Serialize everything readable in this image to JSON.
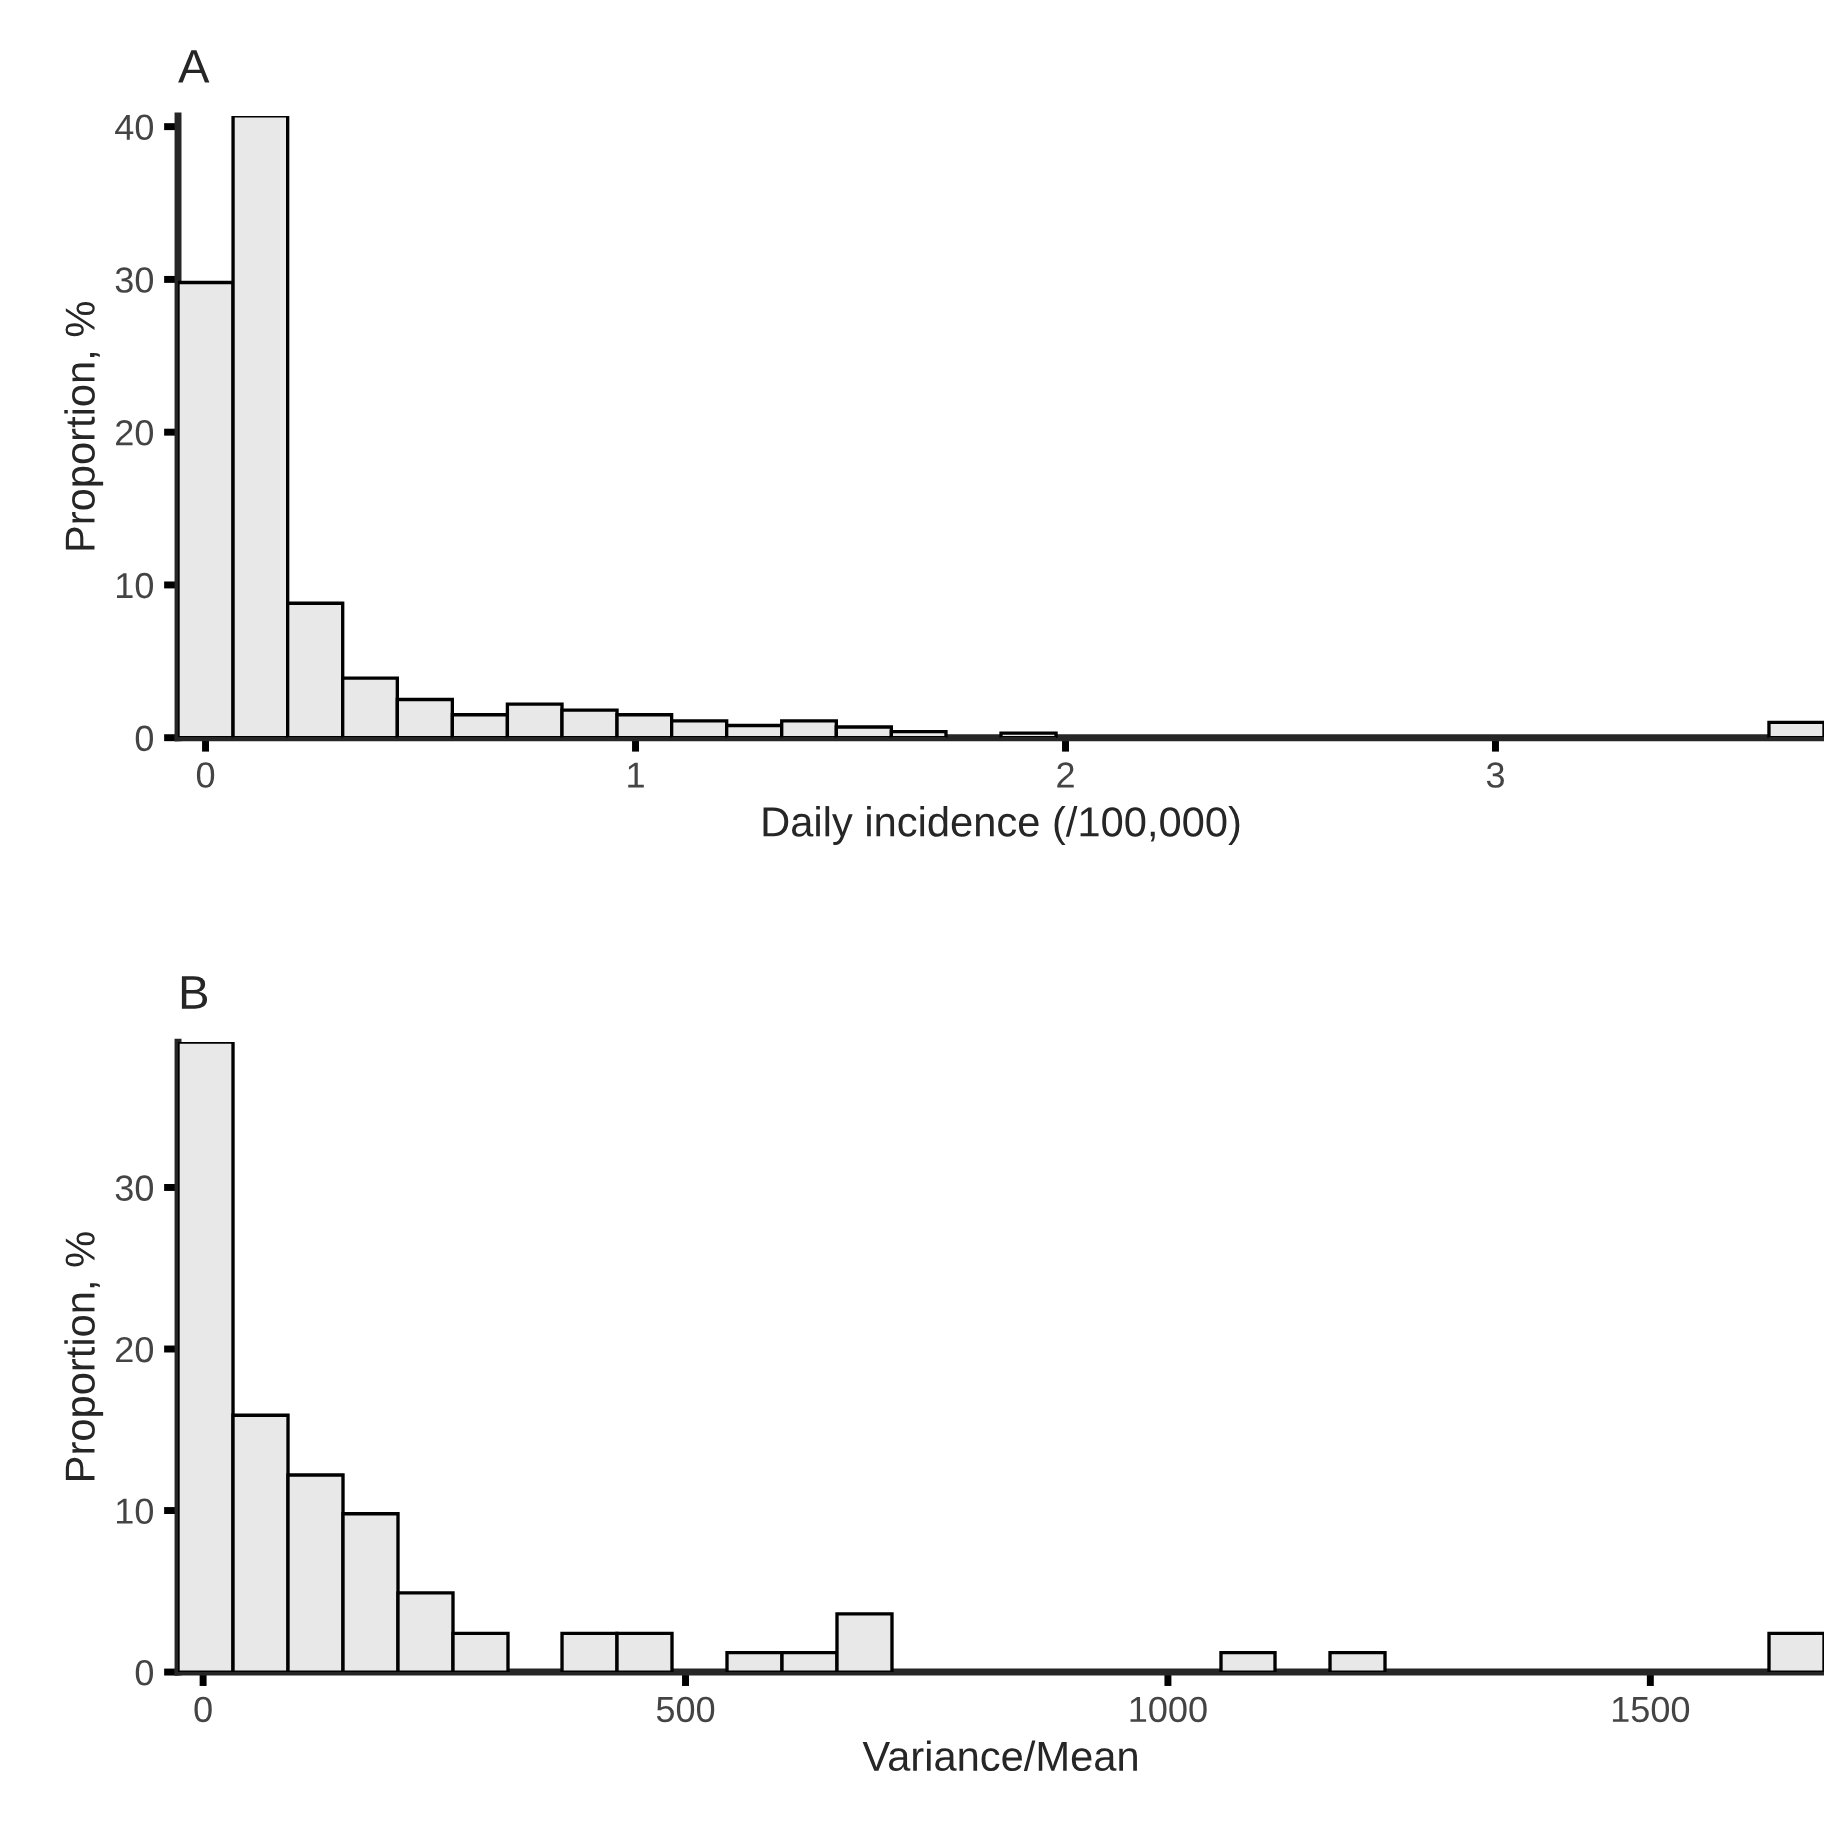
{
  "chart_data": [
    {
      "type": "histogram",
      "title": "A",
      "xlabel": "Daily incidence (/100,000)",
      "ylabel": "Proportion, %",
      "color": "#e8e8e8",
      "bins": [
        -0.064,
        0.064,
        0.191,
        0.319,
        0.446,
        0.574,
        0.702,
        0.829,
        0.957,
        1.084,
        1.212,
        1.34,
        1.467,
        1.595,
        1.722,
        1.85,
        1.978,
        2.105,
        2.233,
        2.36,
        2.488,
        2.616,
        2.743,
        2.871,
        2.998,
        3.126,
        3.254,
        3.381,
        3.509,
        3.636,
        3.764
      ],
      "values": [
        29.8,
        40.7,
        8.8,
        3.9,
        2.5,
        1.5,
        2.2,
        1.8,
        1.5,
        1.1,
        0.8,
        1.1,
        0.7,
        0.4,
        0,
        0.3,
        0,
        0,
        0,
        0,
        0,
        0,
        0,
        0,
        0,
        0,
        0,
        0,
        0,
        1.0
      ],
      "xlim": [
        -0.064,
        3.764
      ],
      "xticks": [
        0,
        1,
        2,
        3
      ],
      "ylim": [
        0,
        40.7
      ],
      "yticks": [
        0,
        10,
        20,
        30,
        40
      ],
      "grid": false
    },
    {
      "type": "histogram",
      "title": "B",
      "xlabel": "Variance/Mean",
      "ylabel": "Proportion, %",
      "color": "#e8e8e8",
      "bins": [
        -26,
        31,
        88,
        145,
        202,
        259,
        316,
        372,
        429,
        486,
        543,
        600,
        657,
        714,
        770,
        827,
        884,
        941,
        998,
        1055,
        1111,
        1168,
        1225,
        1282,
        1339,
        1396,
        1453,
        1509,
        1566,
        1623,
        1680
      ],
      "values": [
        39.0,
        15.9,
        12.2,
        9.8,
        4.9,
        2.4,
        0,
        2.4,
        2.4,
        0,
        1.2,
        1.2,
        3.6,
        0,
        0,
        0,
        0,
        0,
        0,
        1.2,
        0,
        1.2,
        0,
        0,
        0,
        0,
        0,
        0,
        0,
        2.4
      ],
      "xlim": [
        -26,
        1680
      ],
      "xticks": [
        0,
        500,
        1000,
        1500
      ],
      "ylim": [
        0,
        39
      ],
      "yticks": [
        0,
        10,
        20,
        30
      ],
      "grid": false
    }
  ]
}
